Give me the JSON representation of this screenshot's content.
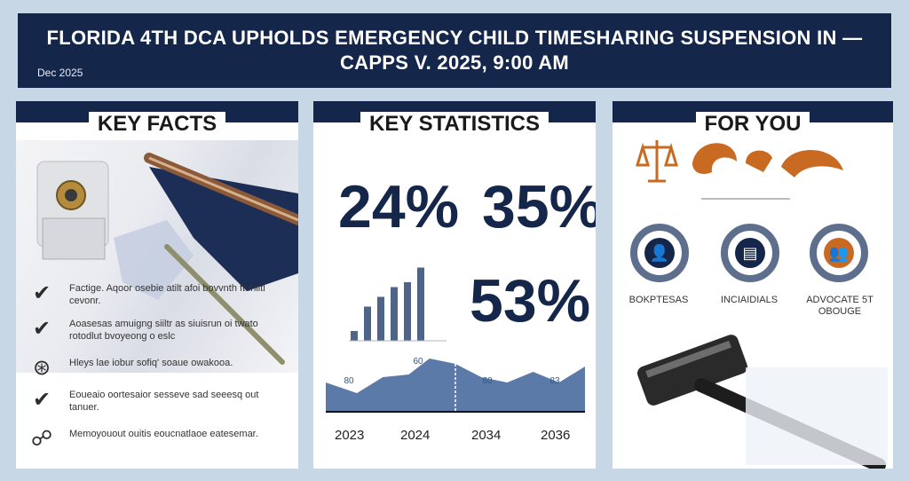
{
  "header": {
    "title": "FLORIDA 4TH DCA UPHOLDS EMERGENCY CHILD TIMESHARING SUSPENSION IN — CAPPS V. 2025, 9:00 AM",
    "date": "Dec 2025"
  },
  "facts": {
    "title": "KEY FACTS",
    "items": [
      {
        "icon": "check-icon",
        "glyph": "✔",
        "text": "Factige. Aqoor osebie atilt afoi bovvnth ftuhiitl cevonr."
      },
      {
        "icon": "check-icon",
        "glyph": "✔",
        "text": "Aoasesas amuigng siiltr as siuisrun oi twato rotodlut bvoyeong o eslc"
      },
      {
        "icon": "badge-icon",
        "glyph": "⊛",
        "text": "Hleys lae iobur sofiq' soaue owakooa."
      },
      {
        "icon": "check-icon",
        "glyph": "✔",
        "text": "Eoueaio oortesaior sesseve sad seeesq out tanuer."
      },
      {
        "icon": "handshake-icon",
        "glyph": "☍",
        "text": "Memoyouout ouitis eoucnatlaoe eatesemar."
      }
    ]
  },
  "stats": {
    "title": "KEY STATISTICS",
    "stat_1": "24%",
    "stat_2": "35%",
    "stat_3": "53%"
  },
  "chart_data": {
    "type": "area",
    "x": [
      "2023",
      "2024",
      "2034",
      "2036"
    ],
    "values": [
      80,
      60,
      60,
      83
    ],
    "data_labels": [
      "80",
      "60",
      "60",
      "83"
    ],
    "bars": [
      10,
      35,
      45,
      55,
      60,
      75
    ],
    "xlabel": "",
    "ylabel": "",
    "colors": {
      "area": "#5b7aa7",
      "bars": "#4e6488"
    }
  },
  "for_you": {
    "title": "FOR YOU",
    "audiences": [
      {
        "icon": "person-icon",
        "glyph": "👤",
        "label": "BOKPTESAS"
      },
      {
        "icon": "document-icon",
        "glyph": "▤",
        "label": "INCIAIDIALS"
      },
      {
        "icon": "group-icon",
        "glyph": "👥",
        "label": "ADVOCATE 5T OBOUGE"
      }
    ]
  },
  "colors": {
    "navy": "#14264a",
    "background": "#c8d7e6",
    "orange": "#c96a22"
  }
}
